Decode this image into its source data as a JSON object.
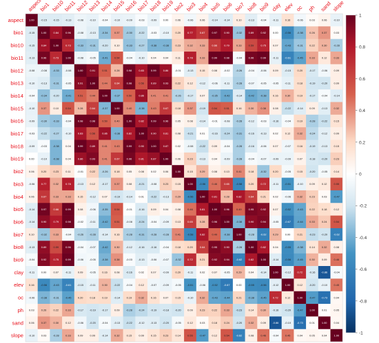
{
  "chart_data": {
    "type": "heatmap",
    "variables": [
      "aspect",
      "bio1",
      "bio10",
      "bio11",
      "bio12",
      "bio13",
      "bio14",
      "bio15",
      "bio16",
      "bio17",
      "bio18",
      "bio19",
      "bio2",
      "bio3",
      "bio4",
      "bio5",
      "bio6",
      "bio7",
      "bio8",
      "bio9",
      "clay",
      "elev",
      "oc",
      "ph",
      "sand",
      "slope"
    ],
    "legend": {
      "ticks": [
        {
          "value": 1,
          "label": "1"
        },
        {
          "value": 0.8,
          "label": "0.8"
        },
        {
          "value": 0.6,
          "label": "0.6"
        },
        {
          "value": 0.4,
          "label": "0.4"
        },
        {
          "value": 0.2,
          "label": "0.2"
        },
        {
          "value": 0,
          "label": "0"
        },
        {
          "value": -0.2,
          "label": "-0.2"
        },
        {
          "value": -0.4,
          "label": "-0.4"
        },
        {
          "value": -0.6,
          "label": "-0.6"
        },
        {
          "value": -0.8,
          "label": "-0.8"
        },
        {
          "value": -1,
          "label": "-1"
        }
      ],
      "placement": "right",
      "range": [
        -1,
        1
      ]
    },
    "colors": {
      "positive": "#c8102e",
      "neutral": "#ffffff",
      "negative": "#0d5aa7",
      "label": "#e8101a"
    },
    "values": [
      [
        1.0,
        -0.15,
        -0.15,
        -0.13,
        -0.08,
        -0.1,
        -0.04,
        -0.1,
        -0.09,
        -0.03,
        -0.09,
        0.0,
        0.06,
        -0.06,
        0.06,
        -0.14,
        -0.14,
        0.1,
        -0.13,
        -0.04,
        -0.11,
        0.16,
        -0.06,
        0.03,
        0.06,
        -0.1
      ],
      [
        -0.15,
        1.0,
        0.84,
        0.96,
        -0.08,
        -0.13,
        -0.34,
        0.37,
        -0.3,
        -0.22,
        -0.03,
        -0.1,
        0.2,
        0.77,
        0.67,
        0.97,
        0.9,
        -0.32,
        0.89,
        0.92,
        0.0,
        -0.56,
        -0.38,
        0.26,
        0.37,
        0.03
      ],
      [
        -0.15,
        0.84,
        1.0,
        0.73,
        -0.33,
        -0.31,
        -0.2,
        0.1,
        -0.33,
        -0.27,
        -0.38,
        -0.38,
        0.23,
        0.32,
        0.33,
        0.66,
        0.79,
        0.33,
        0.59,
        0.75,
        0.07,
        -0.43,
        -0.31,
        0.22,
        0.3,
        -0.28
      ],
      [
        -0.13,
        0.96,
        0.73,
        1.0,
        -0.08,
        -0.05,
        -0.41,
        0.54,
        -0.04,
        -0.1,
        0.04,
        0.04,
        0.11,
        0.78,
        0.33,
        0.99,
        0.98,
        -0.04,
        0.96,
        0.99,
        -0.11,
        -0.61,
        -0.45,
        0.33,
        0.12,
        0.33
      ],
      [
        -0.08,
        -0.08,
        -0.33,
        -0.08,
        1.0,
        0.91,
        0.51,
        0.28,
        0.98,
        0.83,
        0.99,
        0.86,
        -0.01,
        -0.13,
        0.15,
        0.08,
        -0.02,
        -0.26,
        -0.04,
        -0.06,
        0.09,
        -0.15,
        0.2,
        -0.17,
        -0.06,
        0.09
      ],
      [
        -0.1,
        -0.13,
        -0.31,
        -0.05,
        0.91,
        1.0,
        0.44,
        0.64,
        0.98,
        0.56,
        0.89,
        0.93,
        0.22,
        0.12,
        -0.12,
        -0.06,
        -0.11,
        -0.28,
        -0.07,
        -0.05,
        -0.05,
        -0.11,
        0.18,
        -0.19,
        -0.2,
        0.09
      ],
      [
        -0.04,
        -0.34,
        -0.2,
        -0.41,
        0.51,
        0.44,
        1.0,
        -0.37,
        0.5,
        0.86,
        0.41,
        0.41,
        -0.26,
        -0.17,
        0.07,
        -0.35,
        -0.42,
        -0.14,
        -0.42,
        -0.38,
        0.16,
        0.3,
        0.19,
        -0.17,
        -0.04,
        -0.14
      ],
      [
        -0.1,
        0.37,
        0.1,
        0.54,
        0.28,
        0.64,
        -0.37,
        1.0,
        0.4,
        -0.38,
        0.43,
        0.67,
        0.18,
        0.37,
        -0.19,
        0.54,
        0.51,
        0.16,
        0.3,
        0.38,
        0.08,
        -0.22,
        -0.14,
        0.09,
        -0.13,
        0.32
      ],
      [
        -0.09,
        -0.3,
        -0.33,
        -0.04,
        0.98,
        0.98,
        0.5,
        0.4,
        1.0,
        0.82,
        0.99,
        0.96,
        0.05,
        0.08,
        -0.14,
        -0.01,
        -0.08,
        -0.28,
        -0.12,
        -0.03,
        -0.16,
        -0.04,
        0.19,
        -0.28,
        -0.22,
        0.15
      ],
      [
        -0.03,
        -0.22,
        -0.27,
        -0.1,
        0.83,
        0.56,
        0.86,
        -0.38,
        0.82,
        1.0,
        0.9,
        0.81,
        0.08,
        -0.21,
        0.01,
        -0.16,
        -0.24,
        -0.31,
        -0.16,
        -0.13,
        0.02,
        0.12,
        0.32,
        -0.24,
        -0.12,
        0.09
      ],
      [
        -0.09,
        -0.03,
        -0.38,
        0.04,
        0.99,
        0.89,
        0.41,
        0.43,
        0.99,
        0.9,
        1.0,
        0.87,
        0.02,
        -0.08,
        -0.22,
        0.09,
        -0.04,
        -0.28,
        -0.16,
        -0.06,
        0.07,
        -0.07,
        0.16,
        -0.19,
        -0.13,
        0.15
      ],
      [
        0.0,
        -0.1,
        -0.38,
        0.04,
        0.86,
        0.93,
        0.41,
        0.67,
        0.96,
        0.81,
        0.87,
        1.0,
        0.06,
        0.23,
        -0.13,
        0.04,
        -0.09,
        -0.28,
        -0.04,
        -0.07,
        -0.09,
        -0.09,
        0.07,
        -0.18,
        -0.2,
        0.23
      ],
      [
        0.06,
        0.2,
        0.23,
        0.11,
        -0.01,
        0.22,
        -0.26,
        0.18,
        0.05,
        0.08,
        0.02,
        0.06,
        1.0,
        0.15,
        0.29,
        0.08,
        0.13,
        0.41,
        0.18,
        -0.32,
        0.2,
        -0.05,
        0.15,
        -0.2,
        -0.05,
        0.14
      ],
      [
        -0.06,
        0.77,
        0.32,
        0.78,
        -0.13,
        0.12,
        -0.17,
        0.37,
        0.08,
        -0.21,
        -0.08,
        0.23,
        0.15,
        1.0,
        -0.56,
        0.46,
        0.65,
        -0.58,
        0.2,
        0.72,
        -0.11,
        -0.51,
        -0.1,
        0.09,
        0.12,
        0.55
      ],
      [
        0.06,
        0.67,
        0.33,
        0.33,
        0.15,
        -0.12,
        0.07,
        -0.19,
        -0.14,
        0.01,
        -0.22,
        -0.13,
        0.29,
        -0.56,
        1.0,
        0.81,
        0.28,
        0.82,
        0.64,
        0.21,
        0.02,
        -0.06,
        0.32,
        0.23,
        0.03,
        -0.47
      ],
      [
        -0.14,
        0.97,
        0.66,
        0.99,
        0.08,
        -0.06,
        -0.35,
        0.54,
        -0.01,
        -0.16,
        0.09,
        0.04,
        0.08,
        0.46,
        0.81,
        1.0,
        0.96,
        0.49,
        0.95,
        0.92,
        0.07,
        -0.52,
        -0.43,
        0.22,
        0.18,
        0.12
      ],
      [
        -0.14,
        0.9,
        0.79,
        0.98,
        -0.02,
        -0.11,
        -0.42,
        0.51,
        -0.08,
        -0.24,
        -0.04,
        -0.09,
        0.13,
        0.65,
        0.28,
        0.96,
        1.0,
        -0.38,
        0.9,
        0.94,
        -0.05,
        -0.67,
        -0.44,
        0.33,
        0.24,
        0.54
      ],
      [
        0.1,
        -0.32,
        0.33,
        -0.04,
        -0.26,
        -0.28,
        -0.14,
        0.16,
        -0.28,
        -0.31,
        -0.28,
        -0.28,
        0.41,
        -0.58,
        0.82,
        0.49,
        -0.38,
        1.0,
        -0.28,
        -0.62,
        0.29,
        0.0,
        0.21,
        -0.23,
        -0.2,
        -0.62
      ],
      [
        -0.13,
        0.89,
        0.59,
        0.96,
        -0.04,
        -0.07,
        -0.42,
        0.3,
        -0.12,
        -0.16,
        -0.16,
        -0.04,
        0.18,
        0.2,
        0.64,
        0.95,
        0.9,
        -0.28,
        1.0,
        0.82,
        0.04,
        -0.55,
        -0.38,
        0.14,
        0.32,
        0.08
      ],
      [
        -0.04,
        0.92,
        0.75,
        0.99,
        -0.06,
        -0.05,
        -0.38,
        0.38,
        -0.03,
        -0.13,
        -0.06,
        -0.07,
        -0.32,
        0.72,
        0.21,
        0.92,
        0.94,
        -0.62,
        0.82,
        1.0,
        -0.14,
        -0.56,
        -0.45,
        0.3,
        0.09,
        0.46
      ],
      [
        -0.11,
        0.0,
        0.07,
        -0.11,
        0.09,
        -0.05,
        0.16,
        0.08,
        -0.16,
        0.02,
        0.07,
        -0.09,
        0.2,
        -0.11,
        0.02,
        0.07,
        -0.05,
        0.29,
        0.04,
        -0.14,
        1.0,
        -0.12,
        0.72,
        -0.16,
        -0.86,
        -0.04
      ],
      [
        0.16,
        -0.56,
        -0.43,
        -0.61,
        -0.15,
        -0.11,
        0.3,
        -0.22,
        -0.04,
        0.12,
        -0.07,
        -0.09,
        -0.05,
        -0.51,
        -0.06,
        -0.52,
        -0.67,
        0.0,
        -0.55,
        -0.56,
        -0.12,
        1.0,
        0.12,
        -0.2,
        -0.1,
        0.45
      ],
      [
        -0.06,
        -0.38,
        -0.31,
        -0.45,
        0.2,
        0.18,
        0.19,
        -0.14,
        0.19,
        0.32,
        0.16,
        0.07,
        0.15,
        -0.1,
        0.32,
        -0.43,
        -0.44,
        0.21,
        -0.38,
        -0.45,
        0.72,
        0.12,
        1.0,
        -0.47,
        -0.73,
        0.04
      ],
      [
        0.03,
        0.26,
        0.22,
        0.33,
        -0.17,
        -0.19,
        -0.17,
        0.09,
        -0.28,
        -0.24,
        -0.19,
        -0.18,
        -0.2,
        0.09,
        0.23,
        0.22,
        0.33,
        -0.23,
        0.14,
        0.3,
        -0.16,
        -0.2,
        -0.47,
        1.0,
        0.01,
        0.05
      ],
      [
        0.06,
        0.37,
        0.3,
        0.12,
        -0.06,
        -0.2,
        -0.04,
        -0.13,
        -0.22,
        -0.12,
        -0.13,
        -0.2,
        -0.05,
        0.12,
        0.03,
        0.18,
        0.24,
        -0.2,
        0.32,
        0.09,
        -0.86,
        -0.1,
        -0.73,
        0.01,
        1.0,
        0.04
      ],
      [
        -0.1,
        0.03,
        -0.28,
        0.33,
        0.09,
        0.09,
        -0.14,
        0.32,
        0.15,
        0.09,
        0.15,
        0.23,
        0.14,
        0.55,
        -0.47,
        0.12,
        0.54,
        -0.62,
        0.08,
        0.46,
        -0.04,
        0.45,
        0.04,
        0.05,
        0.04,
        1.0
      ]
    ]
  }
}
